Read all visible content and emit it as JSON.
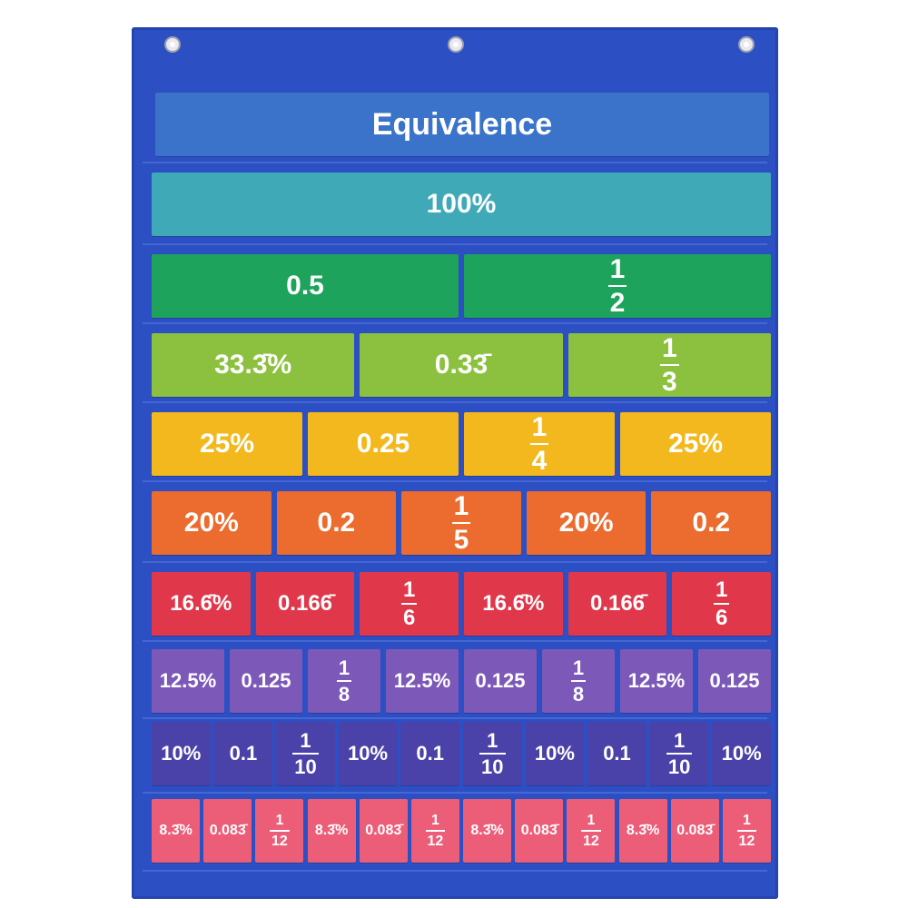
{
  "title": "Equivalence",
  "rows": [
    {
      "color": "#3fa9b8",
      "size": 30,
      "cells": [
        {
          "text": "100%"
        }
      ]
    },
    {
      "color": "#1ea35c",
      "size": 30,
      "cells": [
        {
          "text": "0.5"
        },
        {
          "num": "1",
          "den": "2"
        }
      ]
    },
    {
      "color": "#8cc13f",
      "size": 30,
      "cells": [
        {
          "text": "33.3̄%"
        },
        {
          "text": "0.33̄"
        },
        {
          "num": "1",
          "den": "3"
        }
      ]
    },
    {
      "color": "#f3b81d",
      "size": 30,
      "cells": [
        {
          "text": "25%"
        },
        {
          "text": "0.25"
        },
        {
          "num": "1",
          "den": "4"
        },
        {
          "text": "25%"
        }
      ]
    },
    {
      "color": "#ec6b2e",
      "size": 30,
      "cells": [
        {
          "text": "20%"
        },
        {
          "text": "0.2"
        },
        {
          "num": "1",
          "den": "5"
        },
        {
          "text": "20%"
        },
        {
          "text": "0.2"
        }
      ]
    },
    {
      "color": "#e0374a",
      "size": 24,
      "cells": [
        {
          "text": "16.6̄%"
        },
        {
          "text": "0.166̄"
        },
        {
          "num": "1",
          "den": "6"
        },
        {
          "text": "16.6̄%"
        },
        {
          "text": "0.166̄"
        },
        {
          "num": "1",
          "den": "6"
        }
      ]
    },
    {
      "color": "#7c59b8",
      "size": 22,
      "cells": [
        {
          "text": "12.5%"
        },
        {
          "text": "0.125"
        },
        {
          "num": "1",
          "den": "8"
        },
        {
          "text": "12.5%"
        },
        {
          "text": "0.125"
        },
        {
          "num": "1",
          "den": "8"
        },
        {
          "text": "12.5%"
        },
        {
          "text": "0.125"
        }
      ]
    },
    {
      "color": "#4a42a8",
      "size": 22,
      "cells": [
        {
          "text": "10%"
        },
        {
          "text": "0.1"
        },
        {
          "num": "1",
          "den": "10"
        },
        {
          "text": "10%"
        },
        {
          "text": "0.1"
        },
        {
          "num": "1",
          "den": "10"
        },
        {
          "text": "10%"
        },
        {
          "text": "0.1"
        },
        {
          "num": "1",
          "den": "10"
        },
        {
          "text": "10%"
        }
      ]
    },
    {
      "color": "#ec5d78",
      "size": 16,
      "cells": [
        {
          "text": "8.3̄%"
        },
        {
          "text": "0.083̄"
        },
        {
          "num": "1",
          "den": "12"
        },
        {
          "text": "8.3̄%"
        },
        {
          "text": "0.083̄"
        },
        {
          "num": "1",
          "den": "12"
        },
        {
          "text": "8.3̄%"
        },
        {
          "text": "0.083̄"
        },
        {
          "num": "1",
          "den": "12"
        },
        {
          "text": "8.3̄%"
        },
        {
          "text": "0.083̄"
        },
        {
          "num": "1",
          "den": "12"
        }
      ]
    }
  ],
  "colors": {
    "chart_background": "#2d4fc4",
    "title_card": "#3a73c9"
  }
}
